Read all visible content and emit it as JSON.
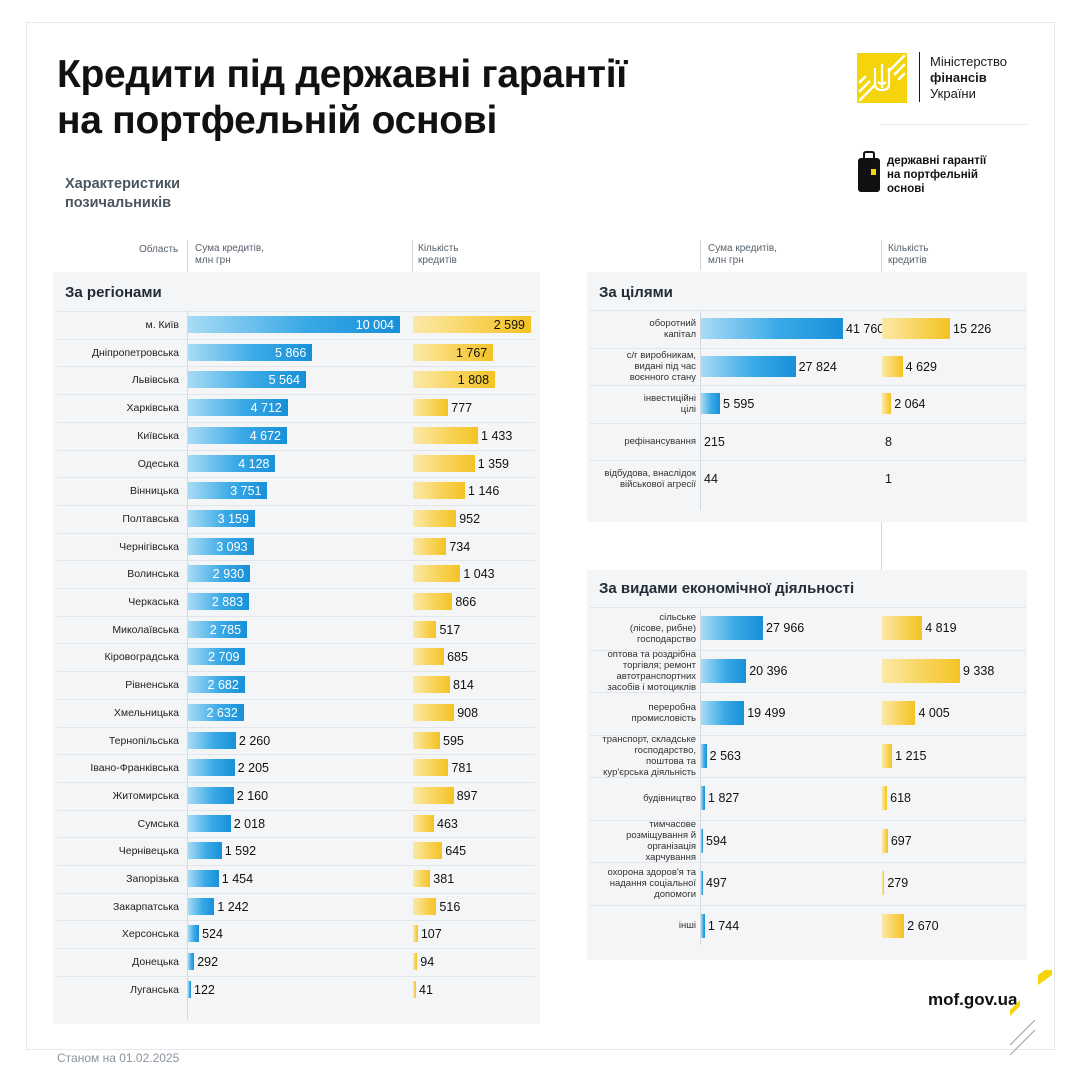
{
  "header": {
    "title_line1": "Кредити під державні гарантії",
    "title_line2": "на портфельній основі",
    "ministry_line1": "Міністерство",
    "ministry_line2": "фінансів",
    "ministry_line3": "України",
    "program_line1": "державні гарантії",
    "program_line2": "на портфельній",
    "program_line3": "основі"
  },
  "subtitle_line1": "Характеристики",
  "subtitle_line2": "позичальників",
  "column_headers": {
    "region": "Область",
    "sum_line1": "Сума кредитів,",
    "sum_line2": "млн грн",
    "count_line1": "Кількість",
    "count_line2": "кредитів"
  },
  "colors": {
    "blue_bar": "#1790d8",
    "yellow_bar": "#f3c324",
    "brand_yellow": "#f5d40c",
    "panel_bg": "#f4f5f7"
  },
  "footer": {
    "date": "Станом на 01.02.2025",
    "website": "mof.gov.ua"
  },
  "chart_data": [
    {
      "type": "bar",
      "title": "За регіонами",
      "categories": [
        "м. Київ",
        "Дніпропетровська",
        "Львівська",
        "Харківська",
        "Київська",
        "Одеська",
        "Вінницька",
        "Полтавська",
        "Чернігівська",
        "Волинська",
        "Черкаська",
        "Миколаївська",
        "Кіровоградська",
        "Рівненська",
        "Хмельницька",
        "Тернопільська",
        "Івано-Франківська",
        "Житомирська",
        "Сумська",
        "Чернівецька",
        "Запорізька",
        "Закарпатська",
        "Херсонська",
        "Донецька",
        "Луганська"
      ],
      "series": [
        {
          "name": "Сума кредитів, млн грн",
          "values": [
            10004,
            5866,
            5564,
            4712,
            4672,
            4128,
            3751,
            3159,
            3093,
            2930,
            2883,
            2785,
            2709,
            2682,
            2632,
            2260,
            2205,
            2160,
            2018,
            1592,
            1454,
            1242,
            524,
            292,
            122
          ],
          "labels": [
            "10 004",
            "5 866",
            "5 564",
            "4 712",
            "4 672",
            "4 128",
            "3 751",
            "3 159",
            "3 093",
            "2 930",
            "2 883",
            "2 785",
            "2 709",
            "2 682",
            "2 632",
            "2 260",
            "2 205",
            "2 160",
            "2 018",
            "1 592",
            "1 454",
            "1 242",
            "524",
            "292",
            "122"
          ]
        },
        {
          "name": "Кількість кредитів",
          "values": [
            2599,
            1767,
            1808,
            777,
            1433,
            1359,
            1146,
            952,
            734,
            1043,
            866,
            517,
            685,
            814,
            908,
            595,
            781,
            897,
            463,
            645,
            381,
            516,
            107,
            94,
            41
          ],
          "labels": [
            "2 599",
            "1 767",
            "1 808",
            "777",
            "1 433",
            "1 359",
            "1 146",
            "952",
            "734",
            "1 043",
            "866",
            "517",
            "685",
            "814",
            "908",
            "595",
            "781",
            "897",
            "463",
            "645",
            "381",
            "516",
            "107",
            "94",
            "41"
          ]
        }
      ]
    },
    {
      "type": "bar",
      "title": "За цілями",
      "categories": [
        "оборотний капітал",
        "с/г виробникам, видані під час воєнного стану",
        "інвестиційні цілі",
        "рефінансування",
        "відбудова, внаслідок військової агресії"
      ],
      "category_lines": [
        [
          "оборотний",
          "капітал"
        ],
        [
          "с/г виробникам,",
          "видані під час",
          "воєнного стану"
        ],
        [
          "інвестиційні",
          "цілі"
        ],
        [
          "рефінансування"
        ],
        [
          "відбудова, внаслідок",
          "військової агресії"
        ]
      ],
      "series": [
        {
          "name": "Сума кредитів, млн грн",
          "values": [
            41760,
            27824,
            5595,
            215,
            44
          ],
          "labels": [
            "41 760",
            "27 824",
            "5 595",
            "215",
            "44"
          ]
        },
        {
          "name": "Кількість кредитів",
          "values": [
            15226,
            4629,
            2064,
            8,
            1
          ],
          "labels": [
            "15 226",
            "4 629",
            "2 064",
            "8",
            "1"
          ]
        }
      ]
    },
    {
      "type": "bar",
      "title": "За видами економічної діяльності",
      "categories": [
        "сільське (лісове, рибне) господарство",
        "оптова та роздрібна торгівля; ремонт автотранспортних засобів і мотоциклів",
        "переробна промисловість",
        "транспорт, складське господарство, поштова та кур'єрська діяльність",
        "будівництво",
        "тимчасове розміщування й організація харчування",
        "охорона здоров'я та надання соціальної допомоги",
        "інші"
      ],
      "category_lines": [
        [
          "сільське",
          "(лісове, рибне)",
          "господарство"
        ],
        [
          "оптова та роздрібна",
          "торгівля; ремонт",
          "автотранспортних",
          "засобів і мотоциклів"
        ],
        [
          "переробна",
          "промисловість"
        ],
        [
          "транспорт, складське",
          "господарство,",
          "поштова та",
          "кур'єрська діяльність"
        ],
        [
          "будівництво"
        ],
        [
          "тимчасове",
          "розміщування й",
          "організація",
          "харчування"
        ],
        [
          "охорона здоров'я та",
          "надання соціальної",
          "допомоги"
        ],
        [
          "інші"
        ]
      ],
      "series": [
        {
          "name": "Сума кредитів, млн грн",
          "values": [
            27966,
            20396,
            19499,
            2563,
            1827,
            594,
            497,
            1744
          ],
          "labels": [
            "27 966",
            "20 396",
            "19 499",
            "2 563",
            "1 827",
            "594",
            "497",
            "1 744"
          ]
        },
        {
          "name": "Кількість кредитів",
          "values": [
            4819,
            9338,
            4005,
            1215,
            618,
            697,
            279,
            2670
          ],
          "labels": [
            "4 819",
            "9 338",
            "4 005",
            "1 215",
            "618",
            "697",
            "279",
            "2 670"
          ]
        }
      ]
    }
  ]
}
